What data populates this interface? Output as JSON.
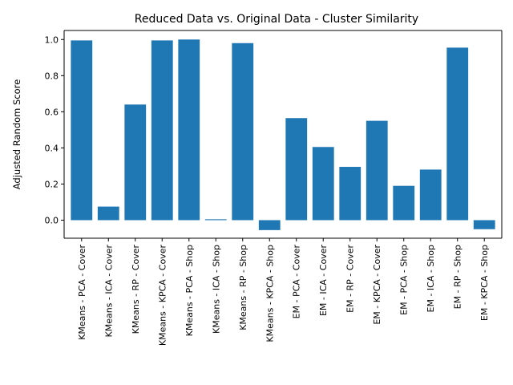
{
  "chart_data": {
    "type": "bar",
    "title": "Reduced Data vs. Original Data - Cluster Similarity",
    "xlabel": "",
    "ylabel": "Adjusted Random Score",
    "categories": [
      "KMeans - PCA - Cover",
      "KMeans - ICA - Cover",
      "KMeans - RP - Cover",
      "KMeans - KPCA - Cover",
      "KMeans - PCA - Shop",
      "KMeans - ICA - Shop",
      "KMeans - RP - Shop",
      "KMeans - KPCA - Shop",
      "EM - PCA - Cover",
      "EM - ICA - Cover",
      "EM - RP - Cover",
      "EM - KPCA - Cover",
      "EM - PCA - Shop",
      "EM - ICA - Shop",
      "EM - RP - Shop",
      "EM - KPCA - Shop"
    ],
    "values": [
      0.995,
      0.075,
      0.64,
      0.995,
      1.0,
      0.005,
      0.98,
      -0.055,
      0.565,
      0.405,
      0.295,
      0.55,
      0.19,
      0.28,
      0.955,
      -0.05
    ],
    "ylim": [
      -0.1,
      1.05
    ],
    "yticks": [
      0.0,
      0.2,
      0.4,
      0.6,
      0.8,
      1.0
    ],
    "ytick_labels": [
      "0.0",
      "0.2",
      "0.4",
      "0.6",
      "0.8",
      "1.0"
    ],
    "bar_color": "#1f77b4",
    "grid": false,
    "legend": "none"
  }
}
